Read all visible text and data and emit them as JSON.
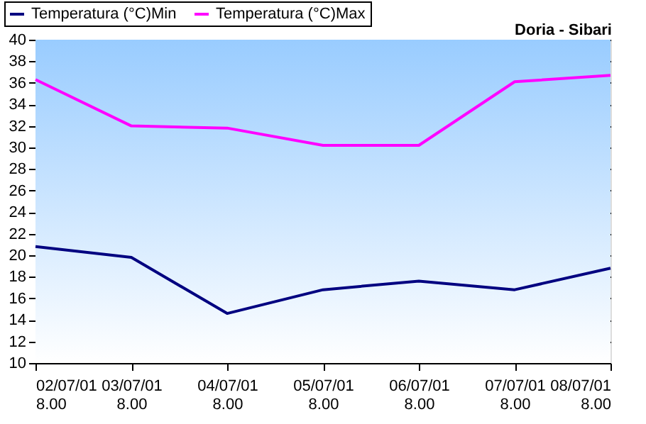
{
  "chart_data": {
    "type": "line",
    "title": "Doria - Sibari",
    "categories": [
      "02/07/01 8.00",
      "03/07/01 8.00",
      "04/07/01 8.00",
      "05/07/01 8.00",
      "06/07/01 8.00",
      "07/07/01 8.00",
      "08/07/01 8.00"
    ],
    "series": [
      {
        "name": "Temperatura (°C)Min",
        "color": "#000080",
        "values": [
          20.8,
          19.8,
          14.6,
          16.8,
          17.6,
          16.8,
          18.8
        ]
      },
      {
        "name": "Temperatura (°C)Max",
        "color": "#ff00ff",
        "values": [
          36.3,
          32.0,
          31.8,
          30.2,
          30.2,
          36.1,
          36.7
        ]
      }
    ],
    "ylim": [
      10,
      40
    ],
    "yticks": [
      10,
      12,
      14,
      16,
      18,
      20,
      22,
      24,
      26,
      28,
      30,
      32,
      34,
      36,
      38,
      40
    ],
    "grid": "y",
    "legend": "top left",
    "marker": "none",
    "line_style": "solid"
  }
}
